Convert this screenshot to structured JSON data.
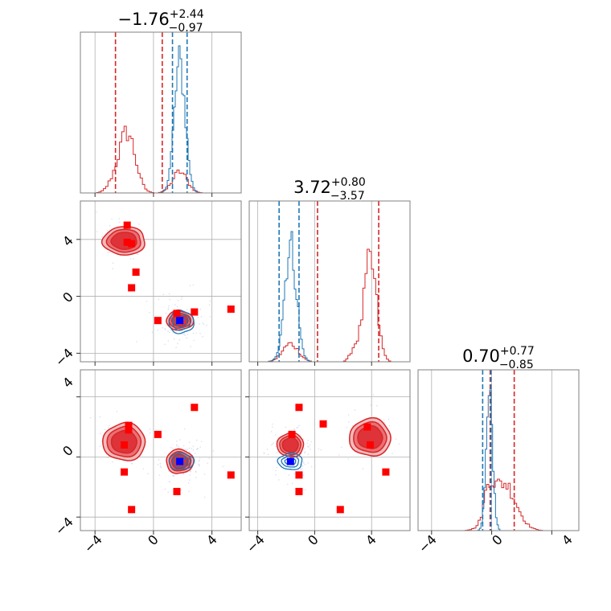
{
  "colors": {
    "red": "#d62728",
    "red_fill_light": "#f4b4b6",
    "red_fill_mid": "#e8686c",
    "red_fill_dark": "#dc2e33",
    "blue": "#1f77b4",
    "blue_marker": "#0000ff",
    "red_marker": "#ff0000",
    "grid": "#b0b0b0",
    "spine": "#808080"
  },
  "titles": [
    {
      "value": "−1.76",
      "plus": "+2.44",
      "minus": "−0.97"
    },
    {
      "value": "3.72",
      "plus": "+0.80",
      "minus": "−3.57"
    },
    {
      "value": "0.70",
      "plus": "+0.77",
      "minus": "−0.85"
    }
  ],
  "tick_labels": [
    "−4",
    "0",
    "4"
  ],
  "chart_data": {
    "type": "corner",
    "grid": true,
    "axis_limits": [
      [
        -5.0,
        6.0
      ],
      [
        -4.6,
        6.7
      ],
      [
        -4.9,
        5.8
      ]
    ],
    "ticks": [
      -4,
      0,
      4
    ],
    "histograms": [
      {
        "panel": "1D param 1",
        "blue_median_q": [
          1.3,
          1.76,
          2.3
        ],
        "red_quantile_lines": [
          -2.6,
          0.6
        ],
        "blue_peak_x": 1.8,
        "red_peaks_x": [
          -1.8,
          1.8
        ]
      },
      {
        "panel": "1D param 2",
        "blue_quantile_lines": [
          -2.5,
          -1.1
        ],
        "red_quantile_lines": [
          0.2,
          4.5
        ],
        "blue_peak_x": -1.7,
        "red_peaks_x": [
          3.9,
          -1.7
        ]
      },
      {
        "panel": "1D param 3",
        "blue_quantile_lines": [
          -0.6,
          -0.05
        ],
        "red_quantile_lines": [
          -0.1,
          1.5
        ],
        "blue_peak_x": -0.1,
        "red_peak_x": 0.7
      }
    ],
    "scatter_panels": [
      {
        "panel": "param 2 vs param 1",
        "red_clusters": [
          [
            -2.0,
            3.9
          ],
          [
            1.8,
            -1.7
          ]
        ],
        "blue_clusters": [
          [
            1.9,
            -1.8
          ]
        ],
        "red_markers": [
          [
            -1.8,
            5.0
          ],
          [
            -1.8,
            3.8
          ],
          [
            -1.5,
            3.7
          ],
          [
            -1.2,
            1.7
          ],
          [
            -1.5,
            0.6
          ],
          [
            0.3,
            -1.7
          ],
          [
            1.6,
            -1.2
          ],
          [
            2.8,
            -1.1
          ],
          [
            5.3,
            -0.9
          ]
        ],
        "blue_marker": [
          1.8,
          -1.7
        ]
      },
      {
        "panel": "param 3 vs param 1",
        "red_clusters": [
          [
            -2.0,
            1.0
          ],
          [
            1.8,
            -0.3
          ]
        ],
        "blue_clusters": [
          [
            1.9,
            -0.3
          ]
        ],
        "red_markers": [
          [
            -1.7,
            2.1
          ],
          [
            -1.7,
            1.8
          ],
          [
            0.3,
            1.5
          ],
          [
            -2.0,
            0.8
          ],
          [
            -2.0,
            -1.0
          ],
          [
            1.6,
            -2.3
          ],
          [
            -1.5,
            -3.5
          ],
          [
            2.8,
            3.3
          ],
          [
            5.3,
            -1.2
          ]
        ],
        "blue_marker": [
          1.8,
          -0.3
        ]
      },
      {
        "panel": "param 3 vs param 2",
        "red_clusters": [
          [
            -1.7,
            0.8
          ],
          [
            3.9,
            1.3
          ]
        ],
        "blue_clusters": [
          [
            -1.7,
            -0.3
          ]
        ],
        "red_markers": [
          [
            -1.1,
            3.3
          ],
          [
            0.6,
            2.2
          ],
          [
            -1.6,
            1.5
          ],
          [
            3.7,
            2.0
          ],
          [
            3.9,
            0.8
          ],
          [
            5.0,
            -1.0
          ],
          [
            -1.1,
            -1.2
          ],
          [
            -1.1,
            -2.3
          ],
          [
            1.8,
            -3.5
          ]
        ],
        "blue_marker": [
          -1.7,
          -0.3
        ]
      }
    ]
  }
}
